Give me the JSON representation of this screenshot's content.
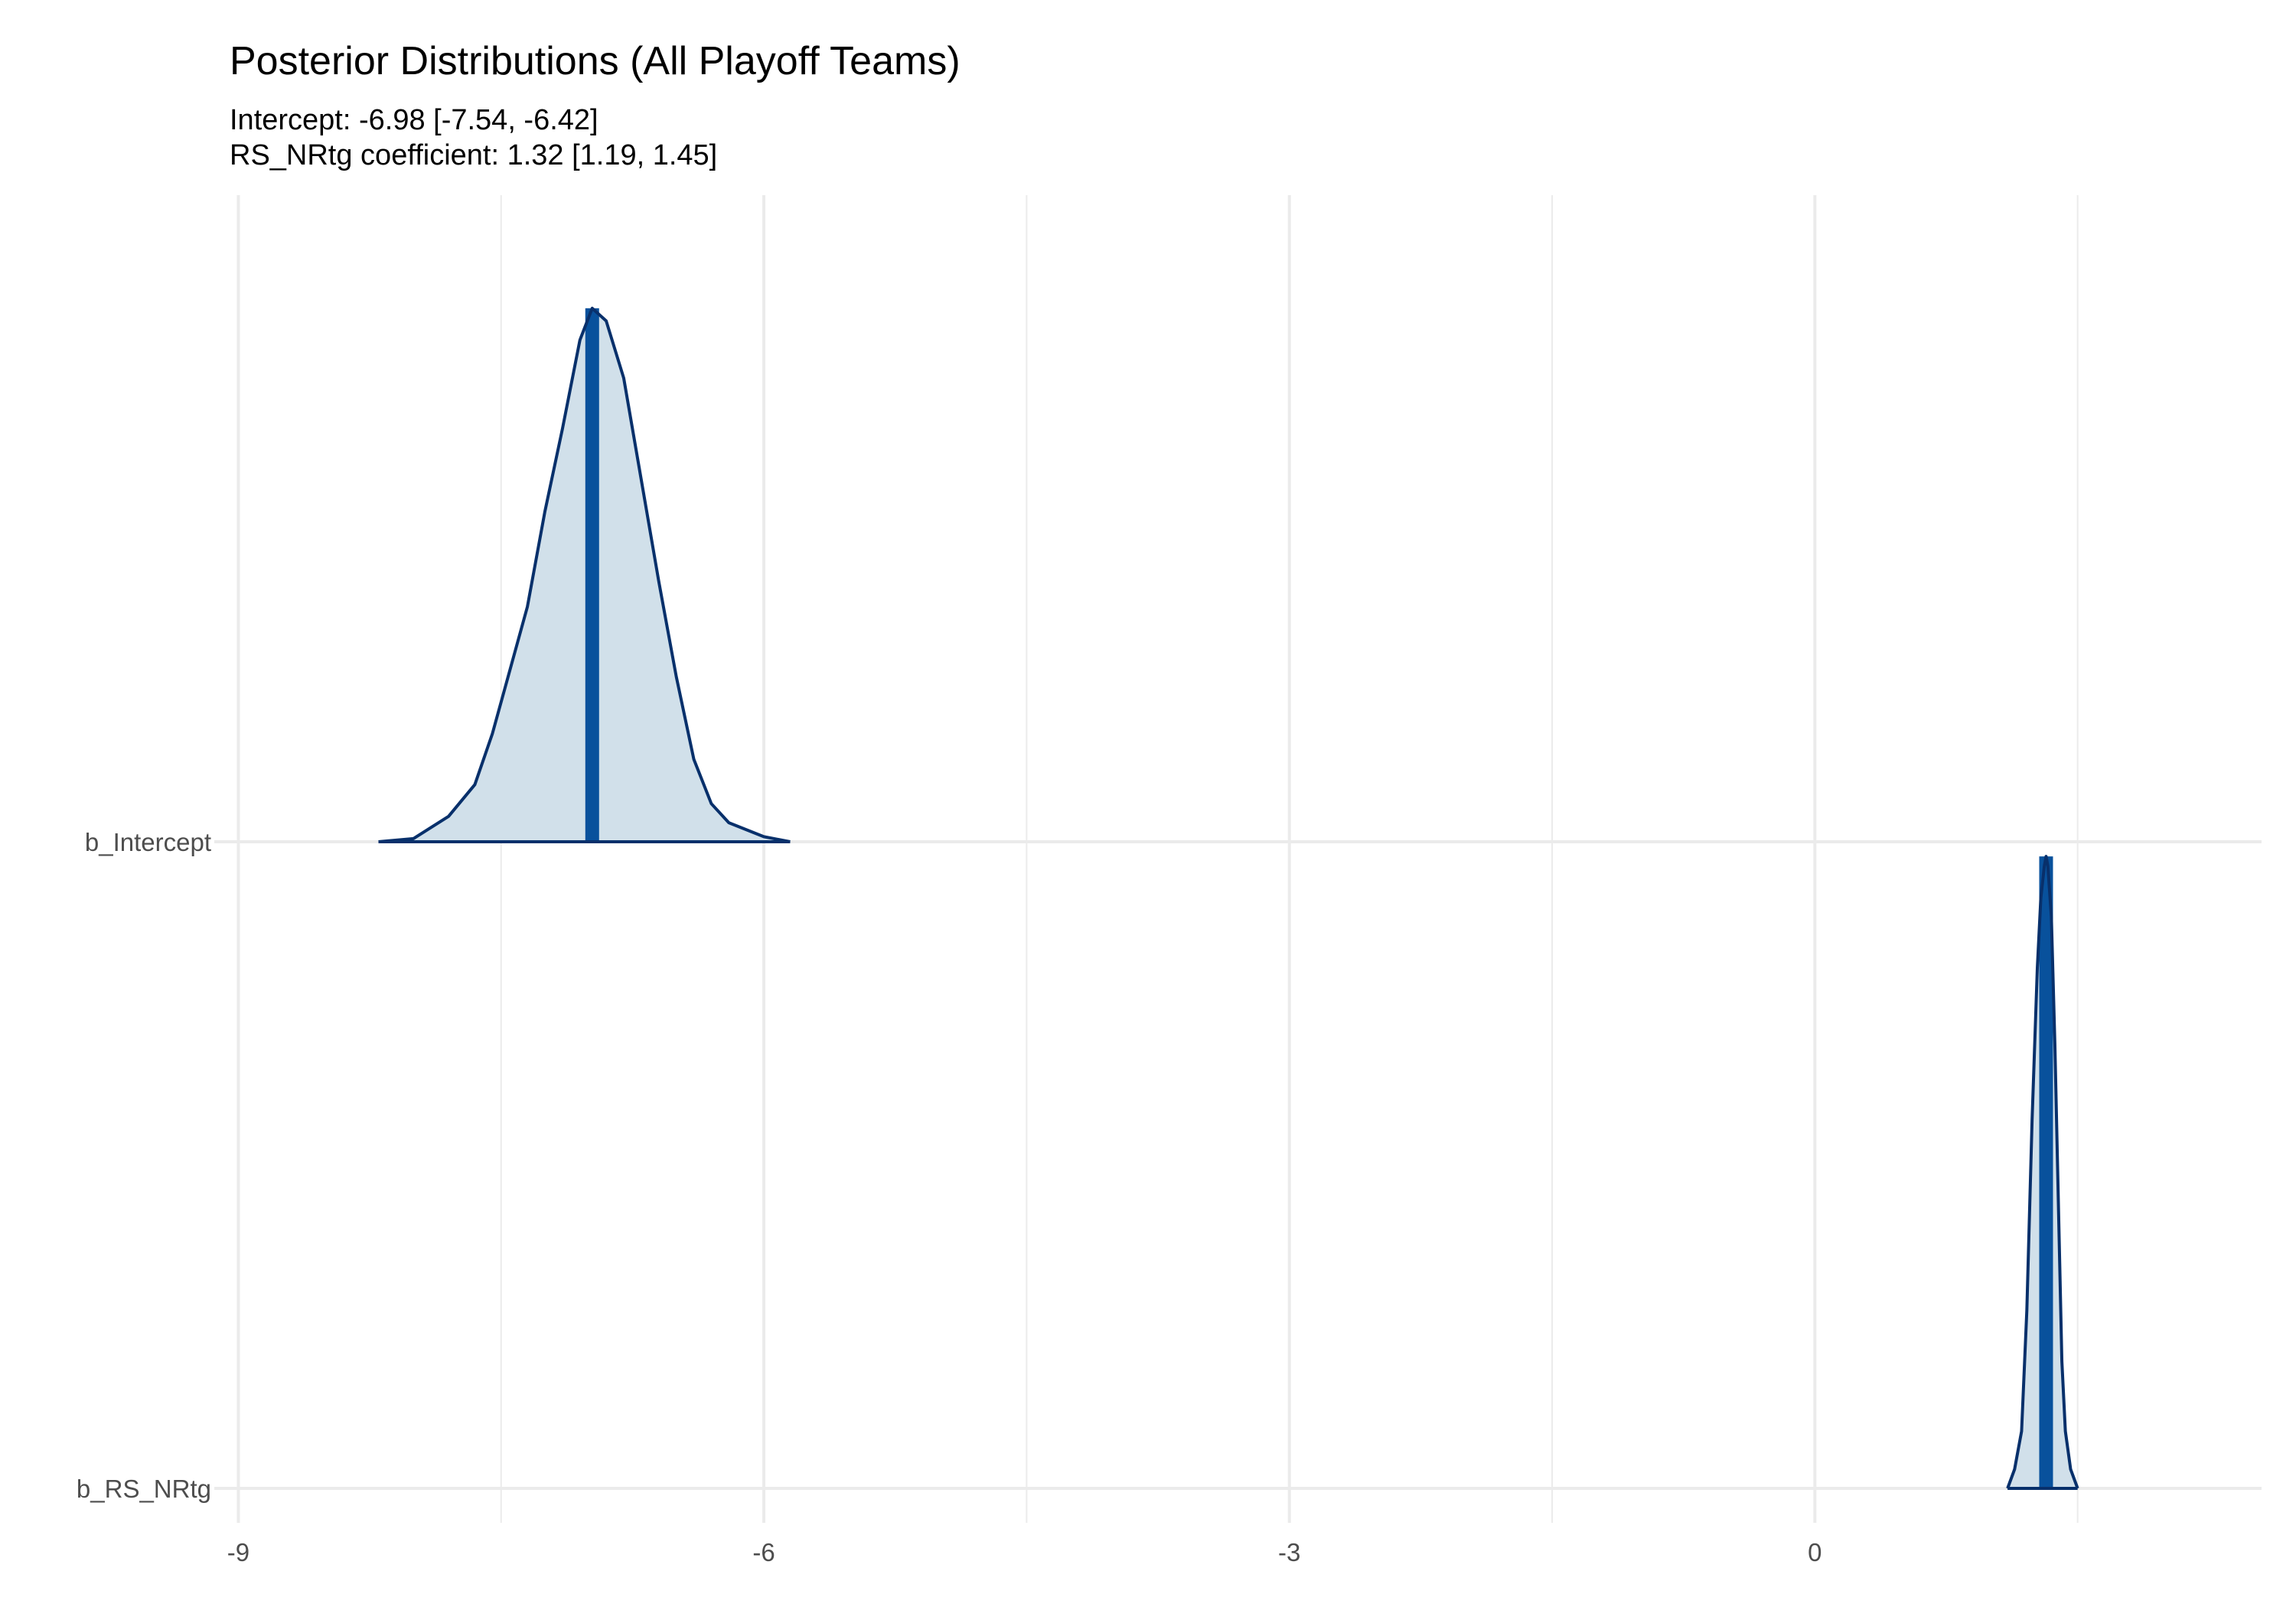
{
  "chart_data": {
    "type": "area",
    "title": "Posterior Distributions (All Playoff Teams)",
    "subtitle_lines": [
      "Intercept: -6.98 [-7.54, -6.42]",
      "RS_NRtg coefficient: 1.32 [1.19, 1.45]"
    ],
    "xlabel": "",
    "ylabel": "",
    "xlim": [
      -9.05,
      2.55
    ],
    "x_ticks": [
      -9,
      -6,
      -3,
      0
    ],
    "grid": true,
    "legend": "none",
    "colors": {
      "fill": "#d1e0ea",
      "line": "#08306b",
      "median": "#08519c",
      "grid": "#ebebeb"
    },
    "series": [
      {
        "name": "b_Intercept",
        "median": -6.98,
        "interval": [
          -7.54,
          -6.42
        ],
        "density": [
          [
            -8.2,
            0.0
          ],
          [
            -8.0,
            0.005
          ],
          [
            -7.8,
            0.04
          ],
          [
            -7.65,
            0.09
          ],
          [
            -7.55,
            0.17
          ],
          [
            -7.45,
            0.27
          ],
          [
            -7.35,
            0.37
          ],
          [
            -7.25,
            0.52
          ],
          [
            -7.15,
            0.65
          ],
          [
            -7.05,
            0.79
          ],
          [
            -6.98,
            0.84
          ],
          [
            -6.9,
            0.82
          ],
          [
            -6.8,
            0.73
          ],
          [
            -6.7,
            0.57
          ],
          [
            -6.6,
            0.41
          ],
          [
            -6.5,
            0.26
          ],
          [
            -6.4,
            0.13
          ],
          [
            -6.3,
            0.06
          ],
          [
            -6.2,
            0.03
          ],
          [
            -6.0,
            0.008
          ],
          [
            -5.85,
            0.0
          ]
        ]
      },
      {
        "name": "b_RS_NRtg",
        "median": 1.32,
        "interval": [
          1.19,
          1.45
        ],
        "density": [
          [
            1.1,
            0.0
          ],
          [
            1.14,
            0.03
          ],
          [
            1.18,
            0.09
          ],
          [
            1.21,
            0.28
          ],
          [
            1.24,
            0.58
          ],
          [
            1.27,
            0.82
          ],
          [
            1.29,
            0.93
          ],
          [
            1.31,
            0.98
          ],
          [
            1.32,
            0.995
          ],
          [
            1.33,
            0.98
          ],
          [
            1.35,
            0.9
          ],
          [
            1.37,
            0.7
          ],
          [
            1.39,
            0.45
          ],
          [
            1.41,
            0.2
          ],
          [
            1.43,
            0.09
          ],
          [
            1.46,
            0.03
          ],
          [
            1.5,
            0.0
          ]
        ]
      }
    ]
  }
}
